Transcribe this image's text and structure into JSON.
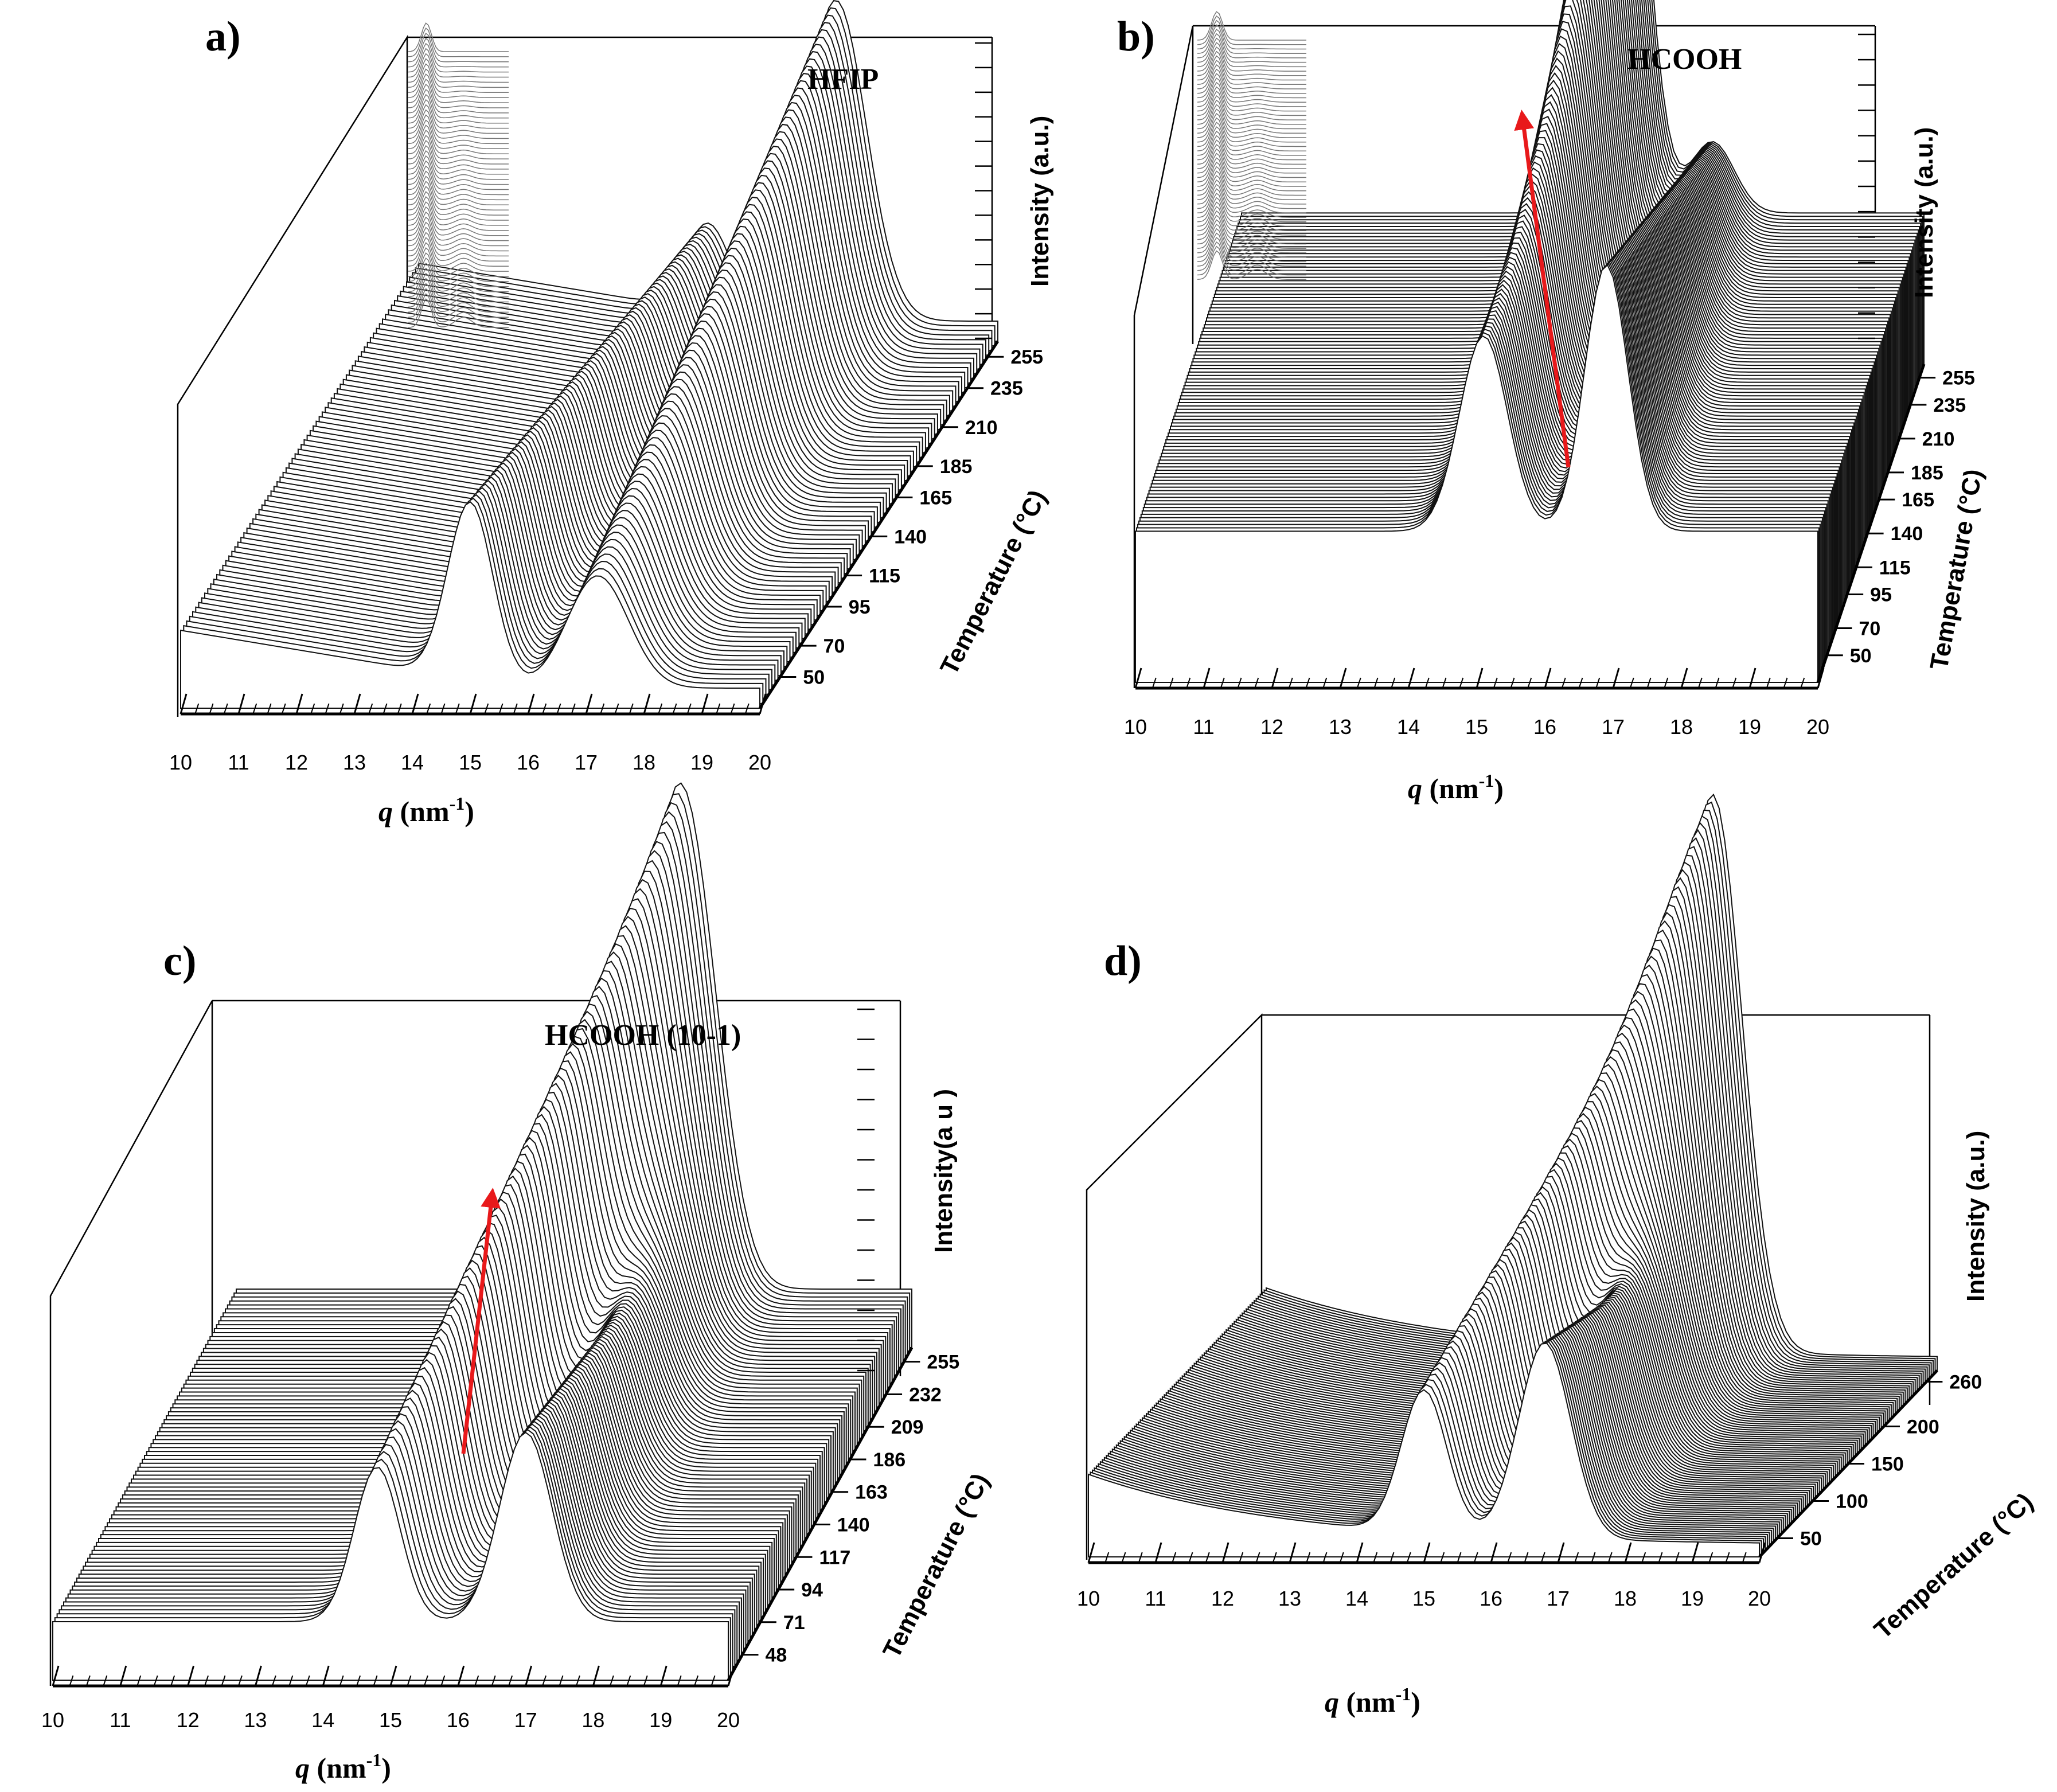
{
  "figure": {
    "panels": [
      {
        "id": "a",
        "letter": "a)",
        "solvent": "HFIP",
        "x_title_q": "q",
        "x_title_unit": " (nm",
        "x_title_exp": "-1",
        "x_title_close": ")",
        "y_title": "Intensity (a.u.)",
        "z_title": "Temperature (°C)"
      },
      {
        "id": "b",
        "letter": "b)",
        "solvent": "HCOOH",
        "x_title_q": "q",
        "x_title_unit": " (nm",
        "x_title_exp": "-1",
        "x_title_close": ")",
        "y_title": "Intensity (a.u.)",
        "z_title": "Temperature (°C)"
      },
      {
        "id": "c",
        "letter": "c)",
        "solvent": "HCOOH  (10-1)",
        "x_title_q": "q",
        "x_title_unit": " (nm",
        "x_title_exp": "-1",
        "x_title_close": ")",
        "y_title": "Intensity(a u )",
        "z_title": "Temperature (°C)"
      },
      {
        "id": "d",
        "letter": "d)",
        "solvent": "",
        "x_title_q": "q",
        "x_title_unit": " (nm",
        "x_title_exp": "-1",
        "x_title_close": ")",
        "y_title": "Intensity (a.u.)",
        "z_title": "Temperature (°C)"
      }
    ]
  },
  "chart_data": [
    {
      "type": "line",
      "title": "a)",
      "annotation": "HFIP",
      "xlabel": "q (nm-1)",
      "ylabel": "Intensity (a.u.)",
      "zlabel": "Temperature (°C)",
      "x_ticks": [
        10,
        11,
        12,
        13,
        14,
        15,
        16,
        17,
        18,
        19,
        20
      ],
      "temperature_ticks": [
        50,
        70,
        95,
        115,
        140,
        165,
        185,
        210,
        235,
        255
      ],
      "xlim": [
        10,
        20
      ],
      "temperature_range": [
        30,
        265
      ],
      "peaks_q": [
        15.0,
        17.2
      ],
      "peak_trend": "higher-q peak grows and dominates at high temperature",
      "has_inset": true,
      "red_arrow": false
    },
    {
      "type": "line",
      "title": "b)",
      "annotation": "HCOOH",
      "xlabel": "q (nm-1)",
      "ylabel": "Intensity (a.u.)",
      "zlabel": "Temperature (°C)",
      "x_ticks": [
        10,
        11,
        12,
        13,
        14,
        15,
        16,
        17,
        18,
        19,
        20
      ],
      "temperature_ticks": [
        50,
        70,
        95,
        115,
        140,
        165,
        185,
        210,
        235,
        255
      ],
      "xlim": [
        10,
        20
      ],
      "temperature_range": [
        30,
        265
      ],
      "peaks_q": [
        15.1,
        16.9
      ],
      "peak_trend": "single sharp peak near q = 15.5 dominates at high temperature",
      "has_inset": true,
      "red_arrow": true
    },
    {
      "type": "line",
      "title": "c)",
      "annotation": "HCOOH  (10-1)",
      "xlabel": "q (nm-1)",
      "ylabel": "Intensity(a u )",
      "zlabel": "Temperature (°C)",
      "x_ticks": [
        10,
        11,
        12,
        13,
        14,
        15,
        16,
        17,
        18,
        19,
        20
      ],
      "temperature_ticks": [
        48,
        71,
        94,
        117,
        140,
        163,
        186,
        209,
        232,
        255
      ],
      "xlim": [
        10,
        20
      ],
      "temperature_range": [
        30,
        265
      ],
      "peaks_q": [
        14.8,
        17.0
      ],
      "peak_trend": "peaks merge into one near q = 16.5 at high temperature",
      "has_inset": false,
      "red_arrow": true
    },
    {
      "type": "line",
      "title": "d)",
      "annotation": "",
      "xlabel": "q (nm-1)",
      "ylabel": "Intensity (a.u.)",
      "zlabel": "Temperature (°C)",
      "x_ticks": [
        10,
        11,
        12,
        13,
        14,
        15,
        16,
        17,
        18,
        19,
        20
      ],
      "temperature_ticks": [
        50,
        100,
        150,
        200,
        260
      ],
      "xlim": [
        10,
        20
      ],
      "temperature_range": [
        25,
        275
      ],
      "peaks_q": [
        15.0,
        16.8
      ],
      "peak_trend": "peaks merge into one near q = 16.6 at high temperature",
      "has_inset": false,
      "red_arrow": false
    }
  ],
  "colors": {
    "trace": "#111111",
    "arrow": "#e8191b",
    "inset": "#777777"
  }
}
